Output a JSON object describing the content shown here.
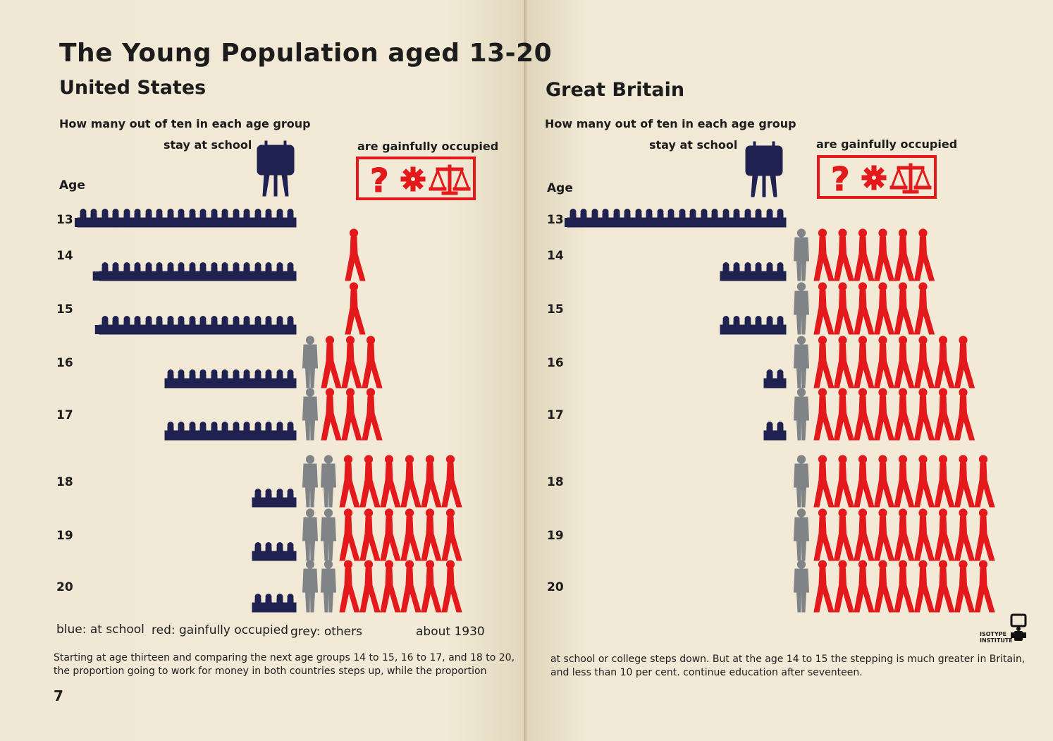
{
  "left": {
    "title": "The Young Population aged 13-20",
    "subtitle": "United States",
    "question": "How many out of ten in each age group",
    "school_header": "stay at school",
    "occupied_header": "are gainfully occupied",
    "age_header": "Age",
    "legend": {
      "blue": "blue: at school",
      "red": "red: gainfully occupied",
      "grey": "grey: others",
      "date": "about 1930"
    },
    "caption_lines": [
      "Starting at age thirteen and comparing the next age groups 14 to 15, 16 to 17, and 18 to 20,",
      "the proportion going to work for money in both countries steps up, while the proportion"
    ],
    "page_number": "7"
  },
  "right": {
    "subtitle": "Great Britain",
    "question": "How many out of ten in each age group",
    "school_header": "stay at school",
    "occupied_header": "are gainfully occupied",
    "age_header": "Age",
    "caption_lines": [
      "at school or college steps down.  But at the age 14 to 15 the stepping is much greater in Britain,",
      "and less than 10 per cent. continue education after seventeen."
    ],
    "logo_text": [
      "ISOTYPE",
      "INSTITUTE"
    ]
  },
  "colors": {
    "school": "#1f2150",
    "occupied": "#e3191c",
    "others": "#808487"
  },
  "occupied_icon_names": [
    "question-icon",
    "gear-icon",
    "scales-icon"
  ],
  "chart_data": [
    {
      "type": "bar",
      "title": "United States",
      "unit": "persons out of ten",
      "categories": [
        "13",
        "14",
        "15",
        "16",
        "17",
        "18",
        "19",
        "20"
      ],
      "series": [
        {
          "name": "at school",
          "values": [
            10,
            9.3,
            9.2,
            6,
            6,
            2,
            2,
            2
          ]
        },
        {
          "name": "others",
          "values": [
            0,
            0,
            0,
            1,
            1,
            2,
            2,
            2
          ]
        },
        {
          "name": "gainfully occupied",
          "values": [
            0,
            0.7,
            0.8,
            3,
            3,
            6,
            6,
            6
          ]
        }
      ]
    },
    {
      "type": "bar",
      "title": "Great Britain",
      "unit": "persons out of ten",
      "categories": [
        "13",
        "14",
        "15",
        "16",
        "17",
        "18",
        "19",
        "20"
      ],
      "series": [
        {
          "name": "at school",
          "values": [
            10,
            3,
            3,
            1,
            1,
            0,
            0,
            0
          ]
        },
        {
          "name": "others",
          "values": [
            0,
            1,
            1,
            1,
            1,
            1,
            1,
            1
          ]
        },
        {
          "name": "gainfully occupied",
          "values": [
            0,
            6,
            6,
            8,
            8,
            9,
            9,
            9
          ]
        }
      ]
    }
  ]
}
